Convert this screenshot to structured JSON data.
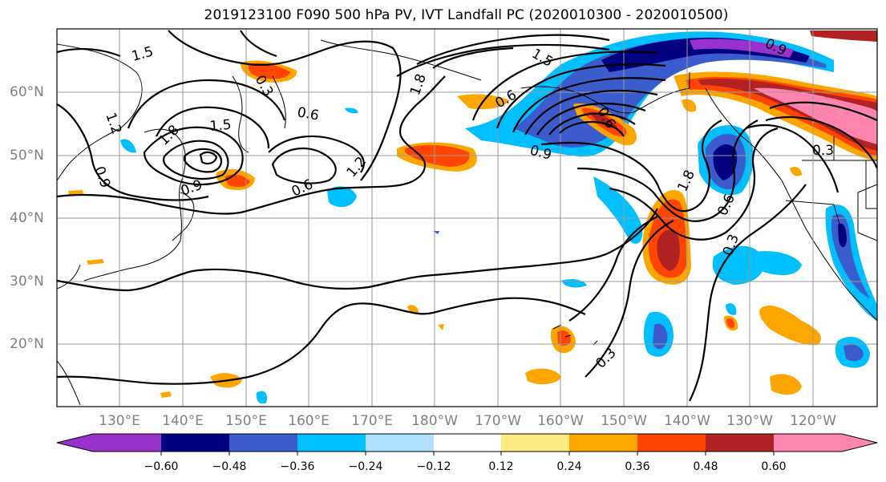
{
  "title": "2019123100 F090 500 hPa PV, IVT Landfall PC (2020010300 - 2020010500)",
  "lat_labels": [
    "60°N",
    "50°N",
    "40°N",
    "30°N",
    "20°N"
  ],
  "lon_labels": [
    "130°E",
    "140°E",
    "150°E",
    "160°E",
    "170°E",
    "180°W",
    "170°W",
    "160°W",
    "150°W",
    "140°W",
    "130°W",
    "120°W"
  ],
  "contour_labels": [
    "1.5",
    "1.2",
    "0.3",
    "0.6",
    "1.5",
    "1.8",
    "0.9",
    "0.9",
    "0.6",
    "1.2",
    "1.8",
    "0.6",
    "0.9",
    "1.5",
    "0.9",
    "1.8",
    "0.6",
    "0.3",
    "0.3",
    "0.3",
    "0.6"
  ],
  "colorbar": {
    "ticks": [
      "−0.60",
      "−0.48",
      "−0.36",
      "−0.24",
      "−0.12",
      "0.12",
      "0.24",
      "0.36",
      "0.48",
      "0.60"
    ],
    "colors": [
      "#9932cc",
      "#000080",
      "#3a5ccc",
      "#00bfff",
      "#b0e0ff",
      "#ffffff",
      "#ffea80",
      "#ffa500",
      "#ff4500",
      "#b22222",
      "#ff85b0"
    ]
  }
}
